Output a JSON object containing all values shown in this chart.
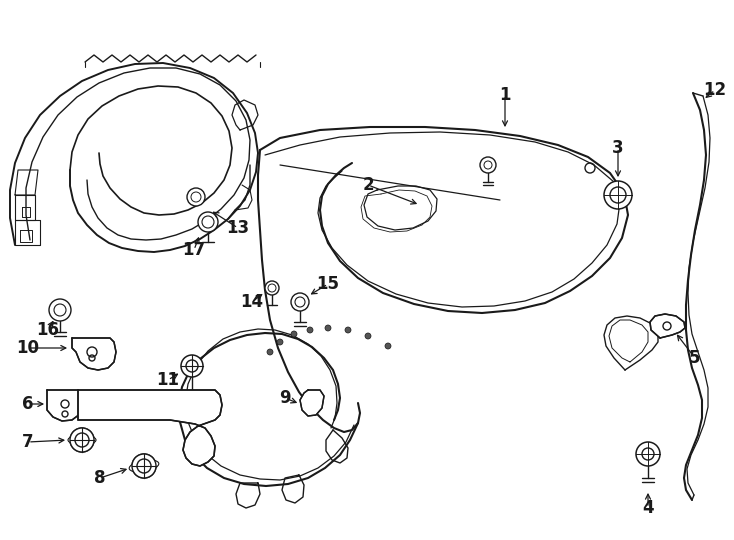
{
  "bg_color": "#ffffff",
  "line_color": "#1a1a1a",
  "lw": 1.0,
  "figsize": [
    7.34,
    5.4
  ],
  "dpi": 100,
  "xlim": [
    0,
    734
  ],
  "ylim": [
    0,
    540
  ]
}
